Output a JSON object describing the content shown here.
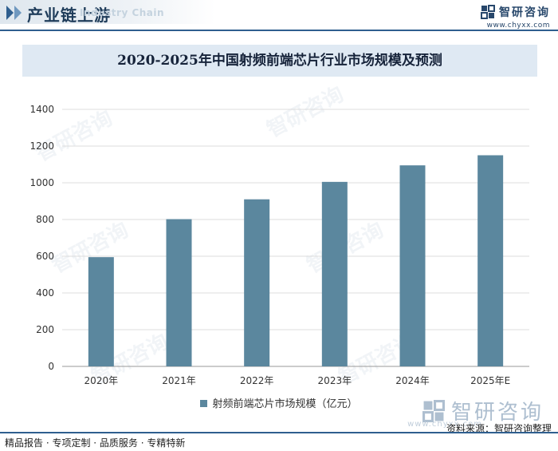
{
  "header": {
    "title": "产业链上游",
    "subtitle": "Industry Chain",
    "brand": "智研咨询",
    "url": "www.chyxx.com"
  },
  "colors": {
    "bar": "#5b879e",
    "accent": "#2f5f8f",
    "title_bg": "#dfe9f3"
  },
  "chart_data": {
    "type": "bar",
    "title": "2020-2025年中国射频前端芯片行业市场规模及预测",
    "categories": [
      "2020年",
      "2021年",
      "2022年",
      "2023年",
      "2024年",
      "2025年E"
    ],
    "series": [
      {
        "name": "射频前端芯片市场规模（亿元）",
        "values": [
          595,
          802,
          910,
          1005,
          1095,
          1150
        ]
      }
    ],
    "yticks": [
      0,
      200,
      400,
      600,
      800,
      1000,
      1200,
      1400
    ],
    "ylim": [
      0,
      1400
    ],
    "xlabel": "",
    "ylabel": "",
    "legend_position": "bottom",
    "grid": true
  },
  "watermark": {
    "brand": "智研咨询"
  },
  "footer": {
    "left": "精品报告 · 专项定制 · 品质服务 · 专精特新",
    "source": "资料来源：智研咨询整理"
  }
}
